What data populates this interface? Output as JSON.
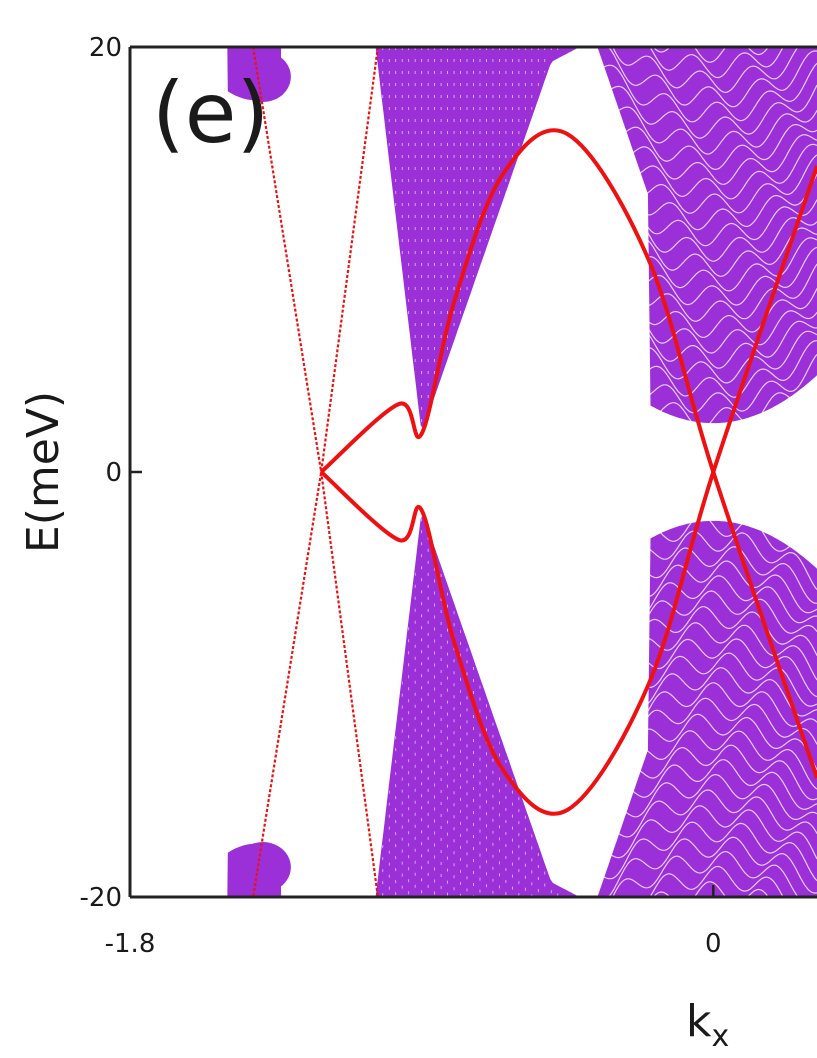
{
  "chart_data": {
    "type": "line",
    "panel_label": "(e)",
    "xlabel": "k",
    "xlabel_sub": "x",
    "ylabel": "E(meV)",
    "xlim": [
      -1.8,
      0.32
    ],
    "ylim": [
      -20,
      20
    ],
    "x_ticks": [
      {
        "value": -1.8,
        "label": "-1.8"
      },
      {
        "value": 0,
        "label": "0"
      }
    ],
    "y_ticks": [
      {
        "value": 20,
        "label": "20"
      },
      {
        "value": 0,
        "label": "0"
      },
      {
        "value": -20,
        "label": "-20"
      }
    ],
    "grid": false,
    "colors": {
      "bulk": "#9b30d9",
      "edge": "#ee1111",
      "axis": "#222222"
    },
    "series": [
      {
        "role": "edge-state-upper",
        "x": [
          -1.8,
          -0.97,
          -0.9,
          -0.8,
          -0.65,
          -0.45,
          -0.2,
          0,
          0.32
        ],
        "y": [
          20,
          3.2,
          1.8,
          8,
          14,
          15.9,
          10,
          0,
          -14.4
        ]
      },
      {
        "role": "edge-state-lower",
        "x": [
          -1.8,
          -0.97,
          -0.9,
          -0.8,
          -0.65,
          -0.45,
          -0.2,
          0,
          0.32
        ],
        "y": [
          -20,
          -3.2,
          -1.8,
          -8,
          -14,
          -15.9,
          -10,
          0,
          14.4
        ]
      },
      {
        "role": "edge-state-steep-1",
        "x": [
          -1.42,
          -1.21,
          -1.035
        ],
        "y": [
          20,
          0,
          -20
        ]
      },
      {
        "role": "edge-state-steep-2",
        "x": [
          -1.035,
          -1.21,
          -1.42
        ],
        "y": [
          20,
          0,
          -20
        ]
      }
    ]
  }
}
